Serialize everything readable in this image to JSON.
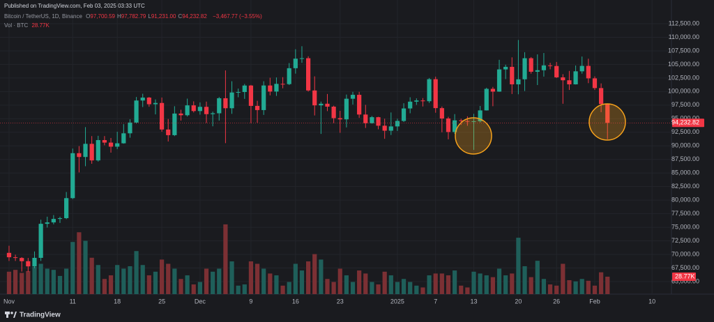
{
  "chart_data": {
    "type": "candlestick",
    "published": "Published on TradingView.com, Feb 03, 2025 03:33 UTC",
    "symbol": "Bitcoin / TetherUS, 1D, Binance",
    "ohlc_legend": [
      {
        "label": "O",
        "value": "97,700.59"
      },
      {
        "label": "H",
        "value": "97,782.79"
      },
      {
        "label": "L",
        "value": "91,231.00"
      },
      {
        "label": "C",
        "value": "94,232.82"
      }
    ],
    "change": "−3,467.77 (−3.55%)",
    "volume_title": "Vol · BTC",
    "volume_legend": "28.77K",
    "brand": "TradingView",
    "up_color": "#22ab94",
    "down_color": "#f23645",
    "volume_up_color": "#1f5f5a",
    "volume_down_color": "#7c3034",
    "last_price": {
      "value": 94232.82,
      "label": "94,232.82"
    },
    "last_volume_label": "28.77K",
    "grid": true,
    "xlim": [
      -1.42,
      104.05
    ],
    "xticks": [
      {
        "value": 0,
        "label": "Nov"
      },
      {
        "value": 10,
        "label": "11"
      },
      {
        "value": 17,
        "label": "18"
      },
      {
        "value": 24,
        "label": "25"
      },
      {
        "value": 30,
        "label": "Dec"
      },
      {
        "value": 38,
        "label": "9"
      },
      {
        "value": 45,
        "label": "16"
      },
      {
        "value": 52,
        "label": "23"
      },
      {
        "value": 61,
        "label": "2025"
      },
      {
        "value": 67,
        "label": "7"
      },
      {
        "value": 73,
        "label": "13"
      },
      {
        "value": 80,
        "label": "20"
      },
      {
        "value": 86,
        "label": "26"
      },
      {
        "value": 92,
        "label": "Feb"
      },
      {
        "value": 101,
        "label": "10"
      }
    ],
    "ylim": [
      62689,
      116865
    ],
    "yticks": [
      {
        "value": 65000,
        "label": "65,000.00"
      },
      {
        "value": 67500,
        "label": "67,500.00"
      },
      {
        "value": 70000,
        "label": "70,000.00"
      },
      {
        "value": 72500,
        "label": "72,500.00"
      },
      {
        "value": 75000,
        "label": "75,000.00"
      },
      {
        "value": 77500,
        "label": "77,500.00"
      },
      {
        "value": 80000,
        "label": "80,000.00"
      },
      {
        "value": 82500,
        "label": "82,500.00"
      },
      {
        "value": 85000,
        "label": "85,000.00"
      },
      {
        "value": 87500,
        "label": "87,500.00"
      },
      {
        "value": 90000,
        "label": "90,000.00"
      },
      {
        "value": 92500,
        "label": "92,500.00"
      },
      {
        "value": 95000,
        "label": "95,000.00"
      },
      {
        "value": 97500,
        "label": "97,500.00"
      },
      {
        "value": 100000,
        "label": "100,000.00"
      },
      {
        "value": 102500,
        "label": "102,500.00"
      },
      {
        "value": 105000,
        "label": "105,000.00"
      },
      {
        "value": 107500,
        "label": "107,500.00"
      },
      {
        "value": 110000,
        "label": "110,000.00"
      },
      {
        "value": 112500,
        "label": "112,500.00"
      }
    ],
    "vlim": [
      0,
      485
    ],
    "open": [
      70290,
      69480,
      69350,
      68760,
      67800,
      69370,
      75640,
      75900,
      76540,
      76680,
      80370,
      88650,
      87950,
      90370,
      87320,
      91060,
      90600,
      89850,
      90470,
      92310,
      94290,
      98350,
      98890,
      97670,
      97900,
      93010,
      91970,
      95950,
      95640,
      97460,
      96410,
      97190,
      95840,
      96000,
      98770,
      96930,
      99830,
      99920,
      101110,
      97360,
      96590,
      101120,
      100000,
      101420,
      101370,
      104300,
      106060,
      106140,
      100200,
      97460,
      97760,
      97220,
      95100,
      94880,
      98680,
      99400,
      95770,
      94160,
      95280,
      93710,
      92790,
      93580,
      94590,
      96890,
      98140,
      98360,
      98220,
      102280,
      96950,
      95040,
      92550,
      94700,
      94570,
      94510,
      94530,
      96530,
      100500,
      99990,
      104080,
      104550,
      101330,
      102260,
      106140,
      103650,
      103930,
      104820,
      104710,
      102620,
      102080,
      101330,
      103730,
      104730,
      102430,
      100640,
      97700.59
    ],
    "high": [
      71600,
      69950,
      69500,
      69350,
      70550,
      76400,
      76950,
      77250,
      76950,
      81500,
      89500,
      89950,
      93450,
      91800,
      91850,
      91800,
      91450,
      92600,
      94000,
      94900,
      99000,
      99600,
      99000,
      98550,
      98900,
      94950,
      97300,
      96650,
      98700,
      98200,
      98000,
      98150,
      96300,
      99000,
      103900,
      101900,
      100550,
      101400,
      101230,
      98300,
      101900,
      102550,
      102600,
      102650,
      105250,
      107800,
      108350,
      106500,
      102800,
      98150,
      99550,
      97400,
      96450,
      99450,
      99950,
      99950,
      97550,
      95500,
      95350,
      95000,
      96150,
      95000,
      97850,
      98950,
      98750,
      98800,
      102500,
      102750,
      97250,
      95350,
      95850,
      95000,
      95450,
      95900,
      97350,
      100700,
      100850,
      105850,
      104950,
      106300,
      109500,
      107250,
      106350,
      106850,
      107100,
      105300,
      105450,
      103200,
      103800,
      104800,
      106450,
      106050,
      102800,
      101500,
      97782.79
    ],
    "low": [
      68800,
      68800,
      66850,
      66800,
      67450,
      68800,
      74950,
      75550,
      75800,
      76500,
      80200,
      85100,
      86250,
      86700,
      87100,
      90100,
      88750,
      89400,
      90400,
      91500,
      94100,
      97150,
      97200,
      95800,
      92600,
      90800,
      91800,
      94650,
      95400,
      96150,
      95750,
      94200,
      93600,
      94650,
      90500,
      95900,
      98950,
      98650,
      94150,
      94250,
      95700,
      99300,
      99200,
      100600,
      101200,
      103300,
      105300,
      100000,
      95600,
      92200,
      96400,
      94200,
      92400,
      93400,
      97600,
      95150,
      93300,
      94100,
      93050,
      91300,
      92000,
      92750,
      94400,
      96000,
      97550,
      97250,
      97900,
      96100,
      92500,
      91200,
      92200,
      93850,
      93700,
      89260,
      94300,
      96500,
      97300,
      99950,
      102300,
      99550,
      99500,
      100100,
      103300,
      101200,
      102750,
      104100,
      102500,
      97750,
      100300,
      101300,
      103300,
      101550,
      100300,
      96200,
      91231
    ],
    "close": [
      69480,
      69350,
      68760,
      67800,
      69370,
      75640,
      75900,
      76540,
      76680,
      80370,
      88650,
      87950,
      90370,
      87320,
      91060,
      90600,
      89850,
      90470,
      92310,
      94290,
      98350,
      98890,
      97670,
      97900,
      93010,
      91970,
      95950,
      95640,
      97460,
      96410,
      97190,
      95840,
      96000,
      98770,
      96930,
      99830,
      99920,
      101110,
      97360,
      96590,
      101120,
      100000,
      101420,
      101370,
      104300,
      106060,
      106140,
      100200,
      97460,
      97760,
      97220,
      95100,
      94880,
      98680,
      99400,
      95770,
      94160,
      95280,
      93710,
      92790,
      93580,
      94590,
      96890,
      98140,
      98360,
      98220,
      102280,
      96950,
      95040,
      92550,
      94700,
      94570,
      94510,
      94530,
      96530,
      100500,
      99990,
      104080,
      104550,
      101330,
      102260,
      106140,
      103650,
      103930,
      104820,
      104710,
      102620,
      102080,
      101330,
      103730,
      104730,
      102430,
      100640,
      97700,
      94232.82
    ],
    "volume": [
      37,
      40,
      35,
      38,
      45,
      50,
      42,
      40,
      30,
      42,
      86,
      102,
      88,
      60,
      48,
      25,
      31,
      48,
      42,
      46,
      71,
      48,
      31,
      37,
      57,
      50,
      42,
      25,
      31,
      16,
      20,
      42,
      37,
      42,
      115,
      54,
      14,
      16,
      54,
      50,
      42,
      34,
      31,
      14,
      20,
      50,
      39,
      54,
      66,
      57,
      25,
      20,
      42,
      31,
      20,
      39,
      34,
      20,
      16,
      37,
      31,
      20,
      25,
      20,
      14,
      11,
      31,
      34,
      34,
      31,
      39,
      14,
      11,
      37,
      34,
      31,
      28,
      42,
      31,
      34,
      93,
      46,
      28,
      55,
      25,
      16,
      14,
      50,
      23,
      21,
      25,
      22,
      14,
      36,
      28.77
    ]
  }
}
